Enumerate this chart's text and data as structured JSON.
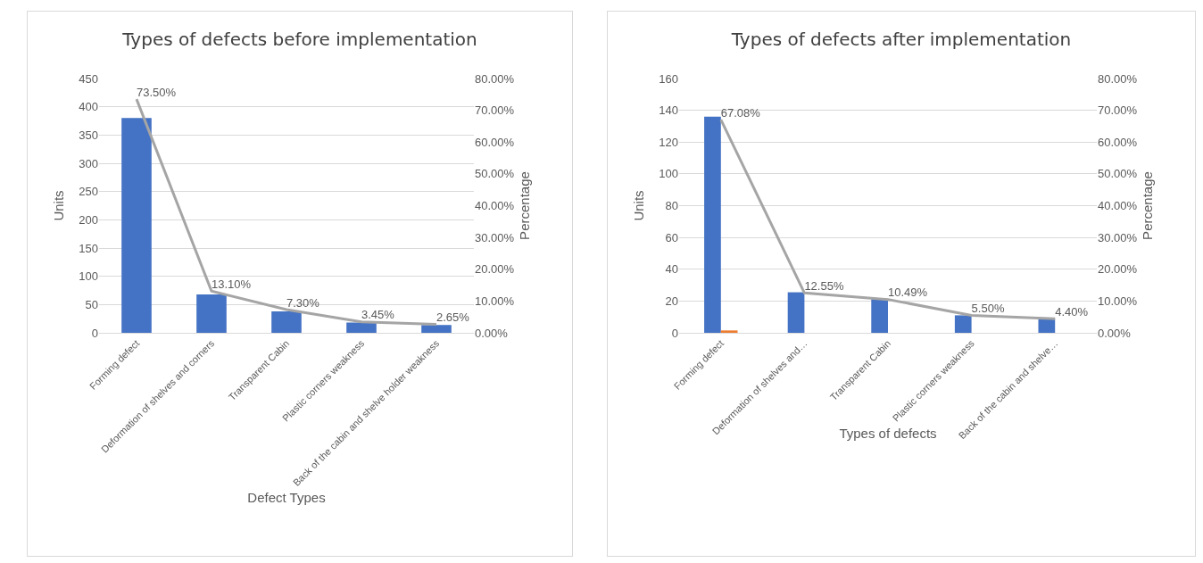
{
  "chart_data": [
    {
      "type": "bar",
      "title": "Types of defects before implementation",
      "xlabel": "Defect Types",
      "ylabel": "Units",
      "y2label": "Percentage",
      "categories": [
        "Forming defect",
        "Deformation of shelves and corners",
        "Transparent Cabin",
        "Plastic corners weakness",
        "Back of the cabin and shelve holder weakness"
      ],
      "series": [
        {
          "color": "#4472c4",
          "values": [
            380,
            68,
            38,
            18,
            14
          ]
        },
        {
          "type": "line",
          "axis": "y2",
          "color": "#a5a5a5",
          "values": [
            73.5,
            13.1,
            7.3,
            3.45,
            2.65
          ],
          "value_labels": [
            "73.50%",
            "13.10%",
            "7.30%",
            "3.45%",
            "2.65%"
          ]
        }
      ],
      "ylim": [
        0,
        450
      ],
      "yticks": [
        0,
        50,
        100,
        150,
        200,
        250,
        300,
        350,
        400,
        450
      ],
      "y2lim": [
        0,
        80
      ],
      "y2ticks": [
        {
          "value": 0,
          "label": "0.00%"
        },
        {
          "value": 10,
          "label": "10.00%"
        },
        {
          "value": 20,
          "label": "20.00%"
        },
        {
          "value": 30,
          "label": "30.00%"
        },
        {
          "value": 40,
          "label": "40.00%"
        },
        {
          "value": 50,
          "label": "50.00%"
        },
        {
          "value": 60,
          "label": "60.00%"
        },
        {
          "value": 70,
          "label": "70.00%"
        },
        {
          "value": 80,
          "label": "80.00%"
        }
      ],
      "grid": "y",
      "marker": "none",
      "line_style": "solid"
    },
    {
      "type": "bar",
      "title": "Types of defects after implementation",
      "xlabel": "Types of defects",
      "ylabel": "Units",
      "y2label": "Percentage",
      "categories": [
        "Forming defect",
        "Deformation of shelves and…",
        "Transparent Cabin",
        "Plastic corners weakness",
        "Back of the cabin and shelve…"
      ],
      "series": [
        {
          "color": "#4472c4",
          "values": [
            136,
            25.5,
            21.3,
            11,
            9
          ]
        },
        {
          "color": "#ed7d31",
          "values": [
            1.5,
            null,
            null,
            null,
            null
          ]
        },
        {
          "type": "line",
          "axis": "y2",
          "color": "#a5a5a5",
          "values": [
            67.08,
            12.55,
            10.49,
            5.5,
            4.4
          ],
          "value_labels": [
            "67.08%",
            "12.55%",
            "10.49%",
            "5.50%",
            "4.40%"
          ]
        }
      ],
      "ylim": [
        0,
        160
      ],
      "yticks": [
        0,
        20,
        40,
        60,
        80,
        100,
        120,
        140,
        160
      ],
      "y2lim": [
        0,
        80
      ],
      "y2ticks": [
        {
          "value": 0,
          "label": "0.00%"
        },
        {
          "value": 10,
          "label": "10.00%"
        },
        {
          "value": 20,
          "label": "20.00%"
        },
        {
          "value": 30,
          "label": "30.00%"
        },
        {
          "value": 40,
          "label": "40.00%"
        },
        {
          "value": 50,
          "label": "50.00%"
        },
        {
          "value": 60,
          "label": "60.00%"
        },
        {
          "value": 70,
          "label": "70.00%"
        },
        {
          "value": 80,
          "label": "80.00%"
        }
      ],
      "grid": "y",
      "marker": "none",
      "line_style": "solid"
    }
  ]
}
